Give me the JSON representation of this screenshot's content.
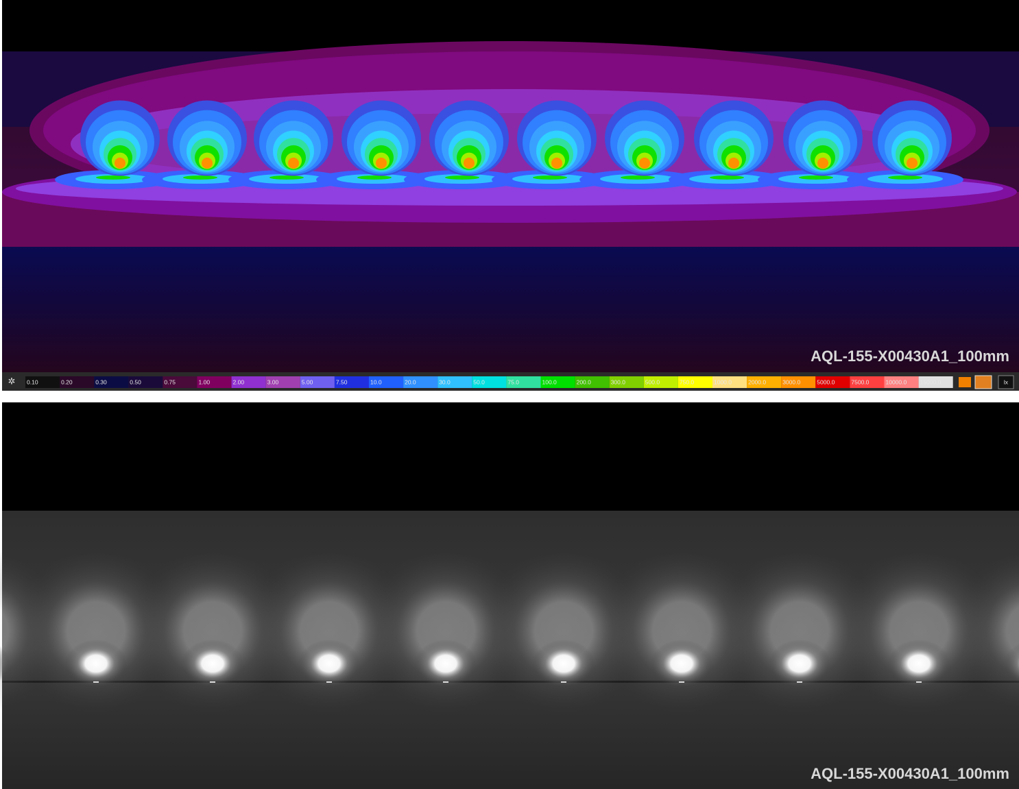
{
  "top_panel": {
    "label": "AQL-155-X00430A1_100mm"
  },
  "legend": {
    "unit": "lx",
    "labels": [
      "0.10",
      "0.20",
      "0.30",
      "0.50",
      "0.75",
      "1.00",
      "2.00",
      "3.00",
      "5.00",
      "7.50",
      "10.0",
      "20.0",
      "30.0",
      "50.0",
      "75.0",
      "100.0",
      "200.0",
      "300.0",
      "500.0",
      "750.0",
      "1000.0",
      "2000.0",
      "3000.0",
      "5000.0",
      "7500.0",
      "10000.0",
      "15000.0"
    ],
    "colors": [
      "#101010",
      "#2a0828",
      "#0c0c44",
      "#1a0a3a",
      "#4a0a3a",
      "#800060",
      "#9030d0",
      "#a040b0",
      "#7060f0",
      "#2030e0",
      "#2060ff",
      "#3090ff",
      "#30c0ff",
      "#00e0e0",
      "#30e0a0",
      "#00e000",
      "#40c000",
      "#80d000",
      "#c0f000",
      "#ffff00",
      "#ffe080",
      "#ffb000",
      "#ff9000",
      "#e00000",
      "#ff4040",
      "#ff8080",
      "#e0e0e0"
    ]
  },
  "bottom_panel": {
    "label": "AQL-155-X00430A1_100mm"
  }
}
